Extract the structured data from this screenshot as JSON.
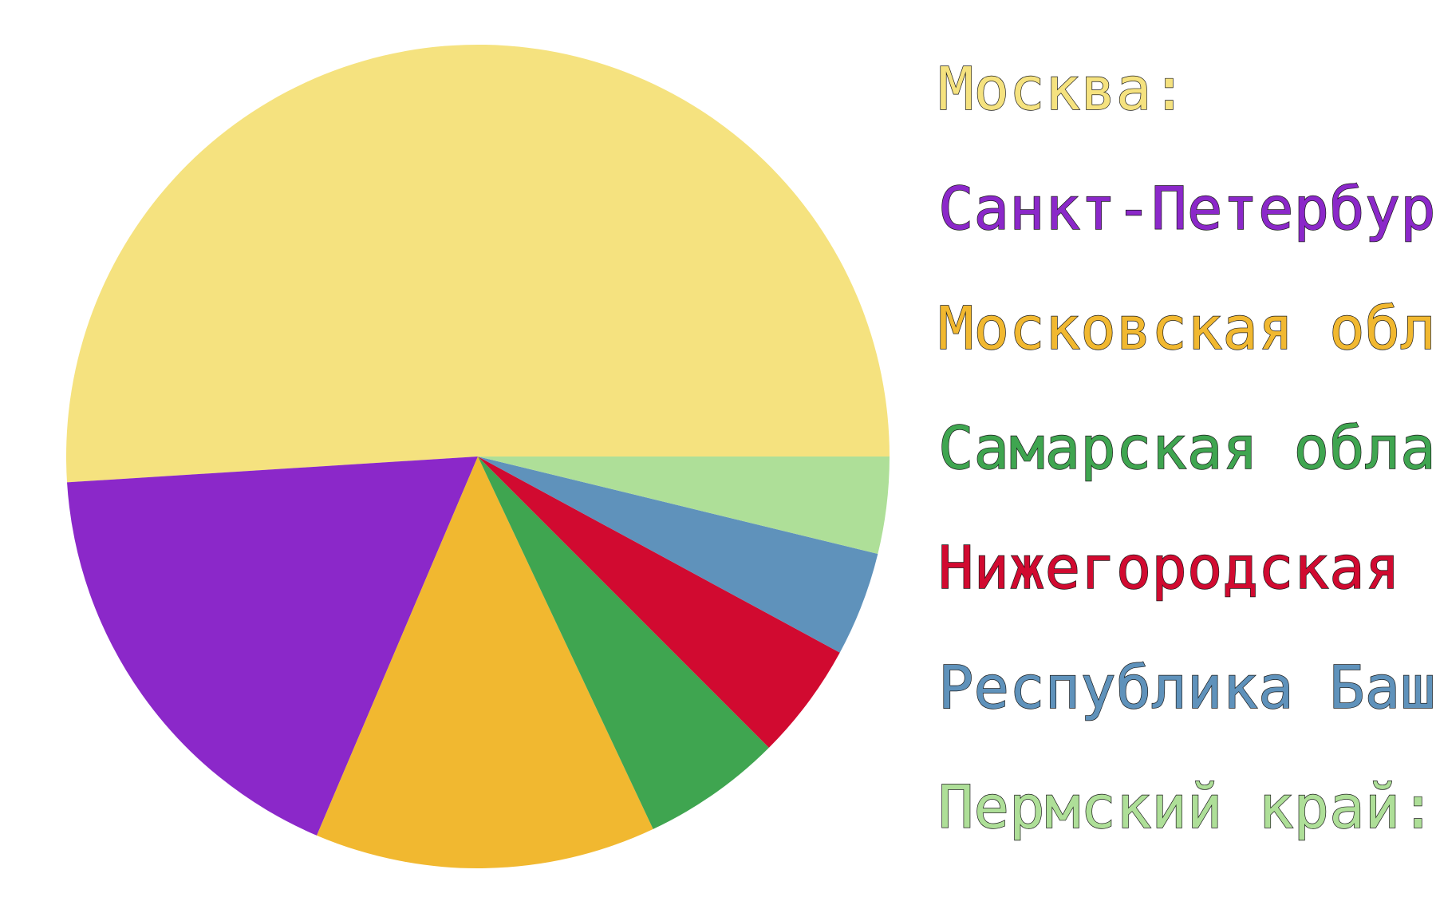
{
  "chart_data": {
    "type": "pie",
    "start_angle_deg": 0,
    "direction": "counterclockwise",
    "slices": [
      {
        "label": "Москва:",
        "value": 51.0,
        "color": "#F5E27F"
      },
      {
        "label": "Санкт-Петербург:",
        "value": 17.6,
        "color": "#8B28C9"
      },
      {
        "label": "Московская область:",
        "value": 13.4,
        "color": "#F1B830"
      },
      {
        "label": "Самарская область:",
        "value": 5.5,
        "color": "#3FA550"
      },
      {
        "label": "Нижегородская область:",
        "value": 4.6,
        "color": "#D10A30"
      },
      {
        "label": "Республика Башкортостан:",
        "value": 4.1,
        "color": "#5F92BB"
      },
      {
        "label": "Пермский край:",
        "value": 3.8,
        "color": "#AEDF98"
      }
    ],
    "legend_position": "right"
  }
}
